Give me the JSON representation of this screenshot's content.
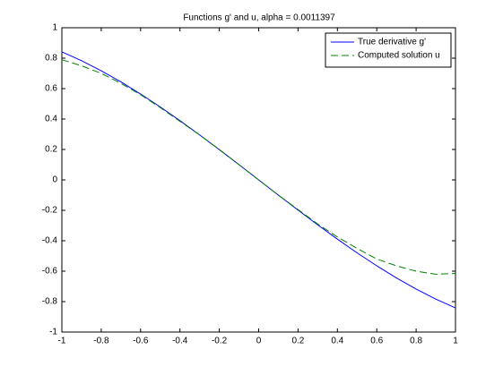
{
  "chart_data": {
    "type": "line",
    "title": "Functions g' and u, alpha = 0.0011397",
    "x": [
      -1,
      -0.9,
      -0.8,
      -0.7,
      -0.6,
      -0.5,
      -0.4,
      -0.3,
      -0.2,
      -0.1,
      0,
      0.1,
      0.2,
      0.3,
      0.4,
      0.5,
      0.6,
      0.7,
      0.8,
      0.9,
      1
    ],
    "series": [
      {
        "name": "True derivative g'",
        "color": "#0000ff",
        "dash": "solid",
        "values": [
          0.8415,
          0.7833,
          0.7174,
          0.6442,
          0.5646,
          0.4794,
          0.3894,
          0.2955,
          0.1987,
          0.0998,
          0,
          -0.0998,
          -0.1987,
          -0.2955,
          -0.3894,
          -0.4794,
          -0.5646,
          -0.6442,
          -0.7174,
          -0.7833,
          -0.8415
        ]
      },
      {
        "name": "Computed solution u",
        "color": "#008000",
        "dash": "dashed",
        "values": [
          0.79,
          0.75,
          0.7,
          0.635,
          0.56,
          0.475,
          0.385,
          0.295,
          0.2,
          0.1,
          0,
          -0.1,
          -0.195,
          -0.29,
          -0.375,
          -0.45,
          -0.52,
          -0.565,
          -0.6,
          -0.62,
          -0.615
        ]
      }
    ],
    "xlim": [
      -1,
      1
    ],
    "ylim": [
      -1,
      1
    ],
    "xticks": [
      -1,
      -0.8,
      -0.6,
      -0.4,
      -0.2,
      0,
      0.2,
      0.4,
      0.6,
      0.8,
      1
    ],
    "yticks": [
      -1,
      -0.8,
      -0.6,
      -0.4,
      -0.2,
      0,
      0.2,
      0.4,
      0.6,
      0.8,
      1
    ],
    "grid": false,
    "legend": "northeast"
  }
}
